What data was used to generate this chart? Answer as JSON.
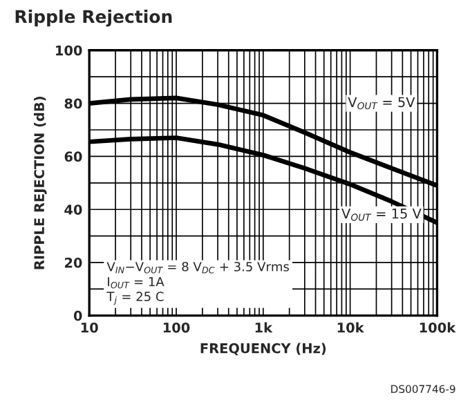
{
  "chart_data": {
    "type": "line",
    "title": "Ripple Rejection",
    "xlabel": "FREQUENCY (Hz)",
    "ylabel": "RIPPLE REJECTION (dB)",
    "log": "x",
    "grid": true,
    "legend": false,
    "marker": "none",
    "line_style": "solid",
    "xlim": [
      10,
      100000
    ],
    "ylim": [
      0,
      100
    ],
    "xticks": [
      10,
      100,
      {
        "value": 1000,
        "label": "1k"
      },
      {
        "value": 10000,
        "label": "10k"
      },
      {
        "value": 100000,
        "label": "100k"
      }
    ],
    "yticks": [
      0,
      {
        "value": 10,
        "label": null
      },
      20,
      {
        "value": 30,
        "label": null
      },
      40,
      {
        "value": 50,
        "label": null
      },
      60,
      {
        "value": 70,
        "label": null
      },
      80,
      {
        "value": 90,
        "label": null
      },
      100
    ],
    "series": [
      {
        "name": "V$_{OUT}$ = 5V",
        "color": "#000000",
        "x": [
          10,
          30,
          100,
          300,
          1000,
          3000,
          10000,
          30000,
          100000
        ],
        "values": [
          80,
          81.5,
          82,
          79.5,
          75.5,
          69,
          61.5,
          55.5,
          49
        ]
      },
      {
        "name": "V$_{OUT}$ = 15 V",
        "color": "#000000",
        "x": [
          10,
          30,
          100,
          300,
          1000,
          3000,
          10000,
          30000,
          100000
        ],
        "values": [
          65.5,
          66.5,
          67,
          64.5,
          60.5,
          55.5,
          49.5,
          43,
          35
        ]
      }
    ],
    "annotations": [
      "V$_{IN}$−V$_{OUT}$ = 8 V$_{DC}$ + 3.5 Vrms\nI$_{OUT}$ = 1A\nT$_{j}$ = 25 C",
      "DS007746-9"
    ]
  }
}
